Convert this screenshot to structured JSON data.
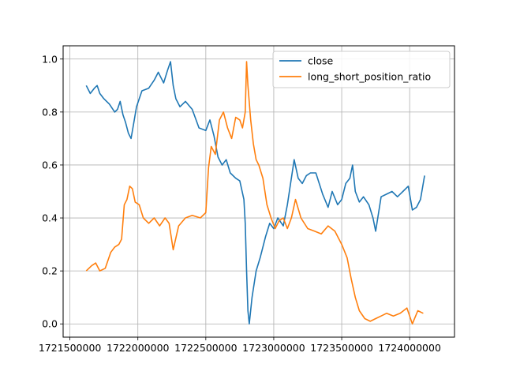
{
  "chart_data": {
    "type": "line",
    "title": "",
    "xlabel": "",
    "ylabel": "",
    "xlim": [
      1721450000,
      1724330000
    ],
    "ylim": [
      -0.05,
      1.05
    ],
    "xticks": [
      1721500000,
      1722000000,
      1722500000,
      1723000000,
      1723500000,
      1724000000
    ],
    "xtick_labels": [
      "1721500000",
      "1722000000",
      "1722500000",
      "1723000000",
      "1723500000",
      "1724000000"
    ],
    "yticks": [
      0.0,
      0.2,
      0.4,
      0.6,
      0.8,
      1.0
    ],
    "ytick_labels": [
      "0.0",
      "0.2",
      "0.4",
      "0.6",
      "0.8",
      "1.0"
    ],
    "grid": true,
    "legend_position": "top-right",
    "series": [
      {
        "name": "close",
        "color": "#1f77b4",
        "x": [
          1721620000,
          1721650000,
          1721680000,
          1721700000,
          1721720000,
          1721750000,
          1721790000,
          1721830000,
          1721850000,
          1721870000,
          1721890000,
          1721910000,
          1721930000,
          1721950000,
          1721970000,
          1721990000,
          1722030000,
          1722080000,
          1722120000,
          1722150000,
          1722170000,
          1722190000,
          1722220000,
          1722240000,
          1722260000,
          1722280000,
          1722310000,
          1722350000,
          1722400000,
          1722450000,
          1722500000,
          1722530000,
          1722560000,
          1722590000,
          1722620000,
          1722650000,
          1722680000,
          1722720000,
          1722750000,
          1722780000,
          1722790000,
          1722800000,
          1722810000,
          1722820000,
          1722840000,
          1722870000,
          1722900000,
          1722940000,
          1722970000,
          1723000000,
          1723030000,
          1723070000,
          1723100000,
          1723150000,
          1723180000,
          1723210000,
          1723240000,
          1723270000,
          1723310000,
          1723360000,
          1723400000,
          1723430000,
          1723470000,
          1723500000,
          1723530000,
          1723560000,
          1723580000,
          1723600000,
          1723630000,
          1723660000,
          1723700000,
          1723730000,
          1723750000,
          1723790000,
          1723830000,
          1723870000,
          1723910000,
          1723950000,
          1723990000,
          1724020000,
          1724050000,
          1724080000,
          1724110000
        ],
        "y": [
          0.9,
          0.87,
          0.89,
          0.9,
          0.87,
          0.85,
          0.83,
          0.8,
          0.81,
          0.84,
          0.79,
          0.76,
          0.72,
          0.7,
          0.76,
          0.82,
          0.88,
          0.89,
          0.92,
          0.95,
          0.93,
          0.91,
          0.96,
          0.99,
          0.9,
          0.85,
          0.82,
          0.84,
          0.81,
          0.74,
          0.73,
          0.77,
          0.71,
          0.63,
          0.6,
          0.62,
          0.57,
          0.55,
          0.54,
          0.47,
          0.38,
          0.2,
          0.05,
          0.0,
          0.1,
          0.2,
          0.25,
          0.33,
          0.38,
          0.36,
          0.4,
          0.37,
          0.45,
          0.62,
          0.55,
          0.53,
          0.56,
          0.57,
          0.57,
          0.49,
          0.44,
          0.5,
          0.45,
          0.47,
          0.53,
          0.55,
          0.6,
          0.5,
          0.46,
          0.48,
          0.45,
          0.4,
          0.35,
          0.48,
          0.49,
          0.5,
          0.48,
          0.5,
          0.52,
          0.43,
          0.44,
          0.47,
          0.56
        ]
      },
      {
        "name": "long_short_position_ratio",
        "color": "#ff7f0e",
        "x": [
          1721620000,
          1721660000,
          1721690000,
          1721720000,
          1721760000,
          1721800000,
          1721830000,
          1721860000,
          1721880000,
          1721900000,
          1721920000,
          1721940000,
          1721960000,
          1721980000,
          1722010000,
          1722040000,
          1722080000,
          1722120000,
          1722160000,
          1722200000,
          1722230000,
          1722260000,
          1722300000,
          1722350000,
          1722400000,
          1722460000,
          1722500000,
          1722520000,
          1722540000,
          1722570000,
          1722600000,
          1722630000,
          1722660000,
          1722690000,
          1722720000,
          1722750000,
          1722770000,
          1722790000,
          1722800000,
          1722810000,
          1722830000,
          1722850000,
          1722870000,
          1722890000,
          1722920000,
          1722950000,
          1722980000,
          1723010000,
          1723040000,
          1723070000,
          1723100000,
          1723130000,
          1723160000,
          1723200000,
          1723250000,
          1723300000,
          1723350000,
          1723400000,
          1723450000,
          1723500000,
          1723540000,
          1723570000,
          1723600000,
          1723630000,
          1723670000,
          1723710000,
          1723750000,
          1723790000,
          1723830000,
          1723880000,
          1723930000,
          1723980000,
          1724020000,
          1724060000,
          1724100000
        ],
        "y": [
          0.2,
          0.22,
          0.23,
          0.2,
          0.21,
          0.27,
          0.29,
          0.3,
          0.32,
          0.45,
          0.47,
          0.52,
          0.51,
          0.46,
          0.45,
          0.4,
          0.38,
          0.4,
          0.37,
          0.4,
          0.38,
          0.28,
          0.37,
          0.4,
          0.41,
          0.4,
          0.42,
          0.59,
          0.67,
          0.64,
          0.77,
          0.8,
          0.74,
          0.7,
          0.78,
          0.77,
          0.74,
          0.8,
          0.99,
          0.9,
          0.77,
          0.68,
          0.62,
          0.6,
          0.55,
          0.45,
          0.4,
          0.36,
          0.39,
          0.4,
          0.36,
          0.4,
          0.47,
          0.4,
          0.36,
          0.35,
          0.34,
          0.37,
          0.35,
          0.3,
          0.25,
          0.17,
          0.1,
          0.05,
          0.02,
          0.01,
          0.02,
          0.03,
          0.04,
          0.03,
          0.04,
          0.06,
          0.0,
          0.05,
          0.04
        ]
      }
    ]
  }
}
